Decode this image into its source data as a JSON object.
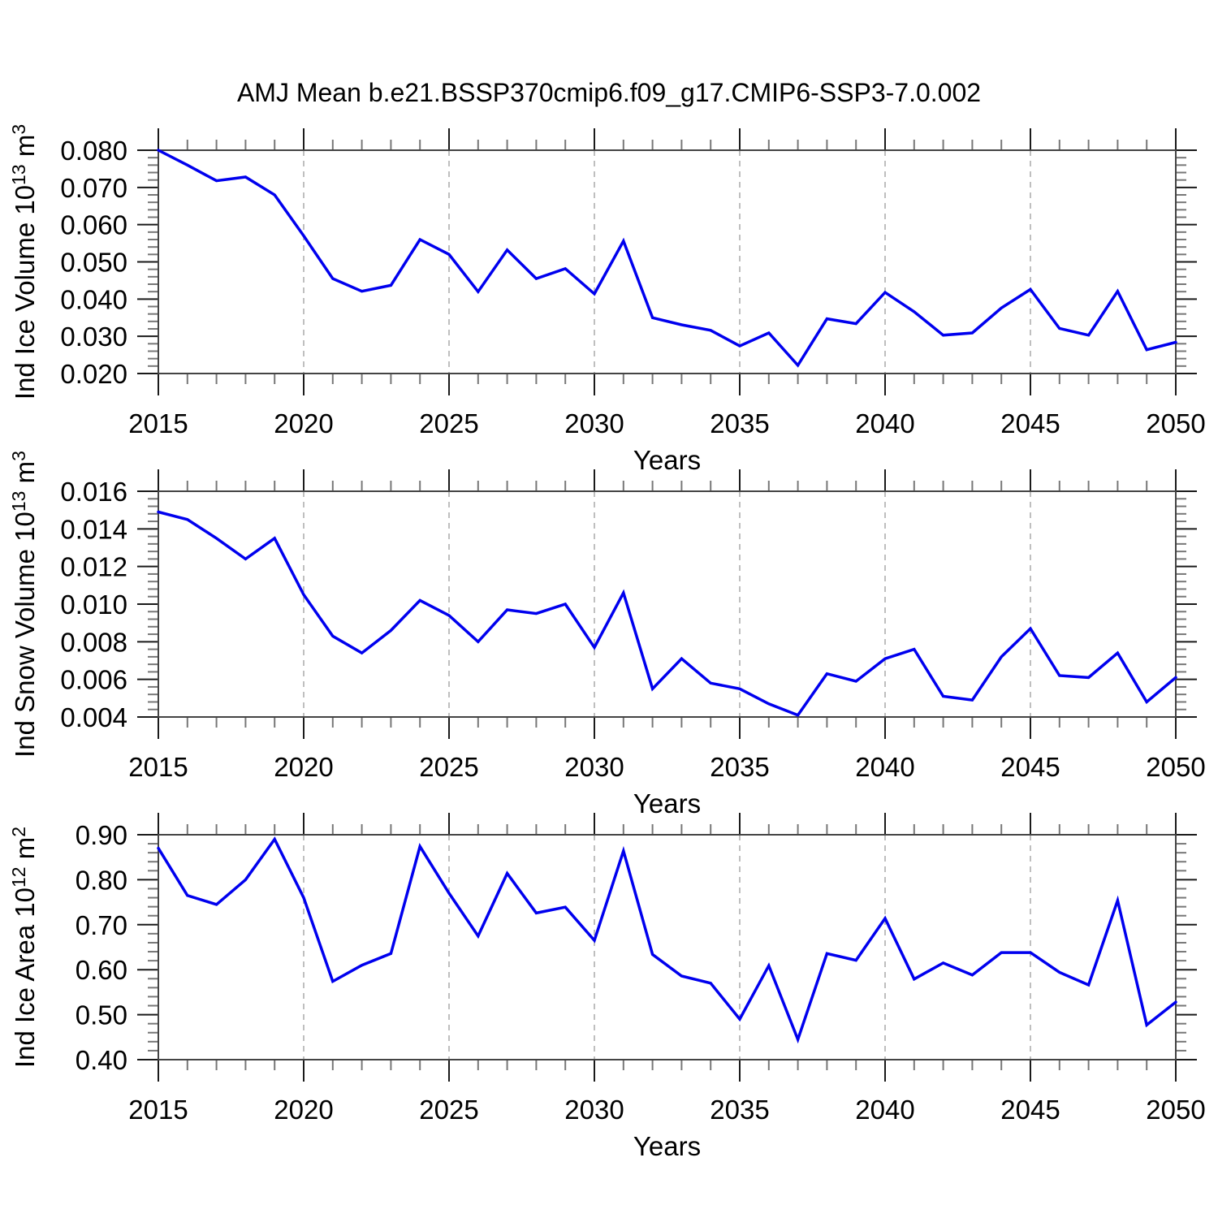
{
  "title": "AMJ Mean b.e21.BSSP370cmip6.f09_g17.CMIP6-SSP3-7.0.002",
  "colors": {
    "line": "#0000ee",
    "frame": "#444444",
    "grid": "#aaaaaa",
    "tick_major": "#1a1a1a",
    "tick_minor": "#777777",
    "text": "#000000",
    "background": "#ffffff"
  },
  "chart_data": [
    {
      "type": "line",
      "ylabel": "Ind Ice Volume 10¹³ m³",
      "xlabel": "Years",
      "x_start": 2015,
      "x_end": 2050,
      "x": [
        2015,
        2016,
        2017,
        2018,
        2019,
        2020,
        2021,
        2022,
        2023,
        2024,
        2025,
        2026,
        2027,
        2028,
        2029,
        2030,
        2031,
        2032,
        2033,
        2034,
        2035,
        2036,
        2037,
        2038,
        2039,
        2040,
        2041,
        2042,
        2043,
        2044,
        2045,
        2046,
        2047,
        2048,
        2049,
        2050
      ],
      "values": [
        0.08,
        0.076,
        0.0718,
        0.0728,
        0.068,
        0.057,
        0.0455,
        0.0421,
        0.0437,
        0.056,
        0.052,
        0.042,
        0.0532,
        0.0455,
        0.0482,
        0.0414,
        0.0556,
        0.035,
        0.0331,
        0.0316,
        0.0274,
        0.0309,
        0.0222,
        0.0347,
        0.0334,
        0.0418,
        0.0366,
        0.0303,
        0.0309,
        0.0376,
        0.0426,
        0.0321,
        0.0303,
        0.0421,
        0.0264,
        0.0284
      ],
      "ylim": [
        0.02,
        0.08
      ],
      "yticks": [
        0.02,
        0.03,
        0.04,
        0.05,
        0.06,
        0.07,
        0.08
      ],
      "ytick_labels": [
        "0.020",
        "0.030",
        "0.040",
        "0.050",
        "0.060",
        "0.070",
        "0.080"
      ],
      "y_minor_step": 0.002,
      "xticks": [
        2015,
        2020,
        2025,
        2030,
        2035,
        2040,
        2045,
        2050
      ],
      "xtick_labels": [
        "2015",
        "2020",
        "2025",
        "2030",
        "2035",
        "2040",
        "2045",
        "2050"
      ],
      "x_minor_step": 1,
      "grid_x": [
        2020,
        2025,
        2030,
        2035,
        2040,
        2045
      ],
      "grid_on": true,
      "legend": "none"
    },
    {
      "type": "line",
      "ylabel": "Ind Snow Volume 10¹³ m³",
      "xlabel": "Years",
      "x_start": 2015,
      "x_end": 2050,
      "x": [
        2015,
        2016,
        2017,
        2018,
        2019,
        2020,
        2021,
        2022,
        2023,
        2024,
        2025,
        2026,
        2027,
        2028,
        2029,
        2030,
        2031,
        2032,
        2033,
        2034,
        2035,
        2036,
        2037,
        2038,
        2039,
        2040,
        2041,
        2042,
        2043,
        2044,
        2045,
        2046,
        2047,
        2048,
        2049,
        2050
      ],
      "values": [
        0.0149,
        0.0145,
        0.0135,
        0.0124,
        0.0135,
        0.0105,
        0.0083,
        0.0074,
        0.0086,
        0.0102,
        0.0094,
        0.008,
        0.0097,
        0.0095,
        0.01,
        0.0077,
        0.0106,
        0.0055,
        0.0071,
        0.0058,
        0.0055,
        0.0047,
        0.0041,
        0.0063,
        0.0059,
        0.0071,
        0.0076,
        0.0051,
        0.0049,
        0.0072,
        0.0087,
        0.0062,
        0.0061,
        0.0074,
        0.0048,
        0.0061
      ],
      "ylim": [
        0.004,
        0.016
      ],
      "yticks": [
        0.004,
        0.006,
        0.008,
        0.01,
        0.012,
        0.014,
        0.016
      ],
      "ytick_labels": [
        "0.004",
        "0.006",
        "0.008",
        "0.010",
        "0.012",
        "0.014",
        "0.016"
      ],
      "y_minor_step": 0.0004,
      "xticks": [
        2015,
        2020,
        2025,
        2030,
        2035,
        2040,
        2045,
        2050
      ],
      "xtick_labels": [
        "2015",
        "2020",
        "2025",
        "2030",
        "2035",
        "2040",
        "2045",
        "2050"
      ],
      "x_minor_step": 1,
      "grid_x": [
        2020,
        2025,
        2030,
        2035,
        2040,
        2045
      ],
      "grid_on": true,
      "legend": "none"
    },
    {
      "type": "line",
      "ylabel": "Ind Ice Area 10¹² m²",
      "xlabel": "Years",
      "x_start": 2015,
      "x_end": 2050,
      "x": [
        2015,
        2016,
        2017,
        2018,
        2019,
        2020,
        2021,
        2022,
        2023,
        2024,
        2025,
        2026,
        2027,
        2028,
        2029,
        2030,
        2031,
        2032,
        2033,
        2034,
        2035,
        2036,
        2037,
        2038,
        2039,
        2040,
        2041,
        2042,
        2043,
        2044,
        2045,
        2046,
        2047,
        2048,
        2049,
        2050
      ],
      "values": [
        0.87,
        0.765,
        0.745,
        0.8,
        0.89,
        0.76,
        0.574,
        0.61,
        0.636,
        0.874,
        0.77,
        0.675,
        0.814,
        0.726,
        0.739,
        0.665,
        0.864,
        0.634,
        0.586,
        0.57,
        0.49,
        0.609,
        0.445,
        0.636,
        0.621,
        0.714,
        0.579,
        0.615,
        0.588,
        0.638,
        0.638,
        0.594,
        0.566,
        0.754,
        0.477,
        0.528
      ],
      "ylim": [
        0.4,
        0.9
      ],
      "yticks": [
        0.4,
        0.5,
        0.6,
        0.7,
        0.8,
        0.9
      ],
      "ytick_labels": [
        "0.40",
        "0.50",
        "0.60",
        "0.70",
        "0.80",
        "0.90"
      ],
      "y_minor_step": 0.02,
      "xticks": [
        2015,
        2020,
        2025,
        2030,
        2035,
        2040,
        2045,
        2050
      ],
      "xtick_labels": [
        "2015",
        "2020",
        "2025",
        "2030",
        "2035",
        "2040",
        "2045",
        "2050"
      ],
      "x_minor_step": 1,
      "grid_x": [
        2020,
        2025,
        2030,
        2035,
        2040,
        2045
      ],
      "grid_on": true,
      "legend": "none"
    }
  ]
}
